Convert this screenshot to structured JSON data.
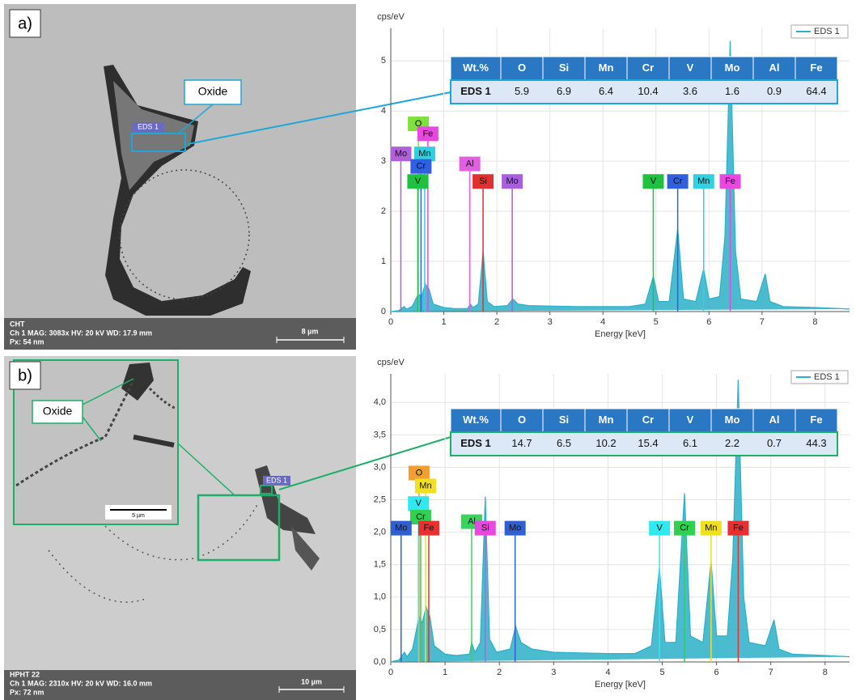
{
  "panels": [
    {
      "label": "a)",
      "image": {
        "eds_marker": "EDS 1",
        "callout": "Oxide",
        "info": {
          "line1": "CHT",
          "line2": "Ch 1  MAG: 3083x  HV: 20 kV  WD: 17.9 mm",
          "line3": "Px: 54 nm",
          "scale": "8 µm"
        }
      },
      "spectrum": {
        "type": "line",
        "y_label": "cps/eV",
        "x_label": "Energy [keV]",
        "legend": "EDS 1",
        "color": "#2bb0c8",
        "grid": true,
        "x": [
          0,
          0.15,
          0.25,
          0.3,
          0.4,
          0.45,
          0.52,
          0.58,
          0.65,
          0.72,
          0.8,
          1.0,
          1.2,
          1.45,
          1.5,
          1.55,
          1.65,
          1.74,
          1.82,
          1.95,
          2.2,
          2.3,
          2.4,
          2.6,
          3.0,
          3.5,
          4.0,
          4.5,
          4.8,
          4.95,
          5.05,
          5.25,
          5.41,
          5.52,
          5.75,
          5.9,
          6.0,
          6.2,
          6.3,
          6.4,
          6.5,
          6.6,
          6.9,
          7.06,
          7.15,
          7.4,
          8.0,
          8.65
        ],
        "values": [
          0,
          0.02,
          0.1,
          0.05,
          0.1,
          0.2,
          0.35,
          0.3,
          0.55,
          0.45,
          0.15,
          0.08,
          0.06,
          0.06,
          0.15,
          0.08,
          0.15,
          1.2,
          0.2,
          0.1,
          0.12,
          0.25,
          0.15,
          0.12,
          0.11,
          0.1,
          0.1,
          0.1,
          0.15,
          0.7,
          0.2,
          0.2,
          1.65,
          0.25,
          0.2,
          0.85,
          0.25,
          0.3,
          1.5,
          5.4,
          1.2,
          0.25,
          0.2,
          0.75,
          0.2,
          0.1,
          0.08,
          0.05
        ],
        "xlim": [
          0,
          8.65
        ],
        "ylim": [
          0,
          5.65
        ],
        "xticks": [
          0,
          1,
          2,
          3,
          4,
          5,
          6,
          7,
          8
        ],
        "yticks": [
          0,
          1,
          2,
          3,
          4,
          5
        ],
        "peaks": [
          {
            "text": "Mo",
            "energy": 0.19,
            "color": "#b060d8"
          },
          {
            "text": "O",
            "energy": 0.52,
            "color": "#80e040"
          },
          {
            "text": "Fe",
            "energy": 0.7,
            "color": "#e848e0"
          },
          {
            "text": "Mn",
            "energy": 0.64,
            "color": "#30d0e0"
          },
          {
            "text": "Cr",
            "energy": 0.57,
            "color": "#3060e0"
          },
          {
            "text": "V",
            "energy": 0.51,
            "color": "#20c040"
          },
          {
            "text": "Al",
            "energy": 1.49,
            "color": "#e060e0"
          },
          {
            "text": "Si",
            "energy": 1.74,
            "color": "#e03030"
          },
          {
            "text": "Mo",
            "energy": 2.29,
            "color": "#a860e0"
          },
          {
            "text": "V",
            "energy": 4.95,
            "color": "#20c040"
          },
          {
            "text": "Cr",
            "energy": 5.41,
            "color": "#3060e0"
          },
          {
            "text": "Mn",
            "energy": 5.9,
            "color": "#30d0e0"
          },
          {
            "text": "Fe",
            "energy": 6.4,
            "color": "#e848e0"
          }
        ]
      },
      "table": {
        "header": [
          "Wt.%",
          "O",
          "Si",
          "Mn",
          "Cr",
          "V",
          "Mo",
          "Al",
          "Fe"
        ],
        "rows": [
          [
            "EDS 1",
            5.9,
            6.9,
            6.4,
            10.4,
            3.6,
            1.6,
            0.9,
            64.4
          ]
        ]
      }
    },
    {
      "label": "b)",
      "image": {
        "eds_marker": "EDS 1",
        "callout": "Oxide",
        "inset_scale": "5 µm",
        "info": {
          "line1": "HPHT 22",
          "line2": "Ch 1  MAG: 2310x  HV: 20 kV  WD: 16.0 mm",
          "line3": "Px: 72 nm",
          "scale": "10 µm"
        }
      },
      "spectrum": {
        "type": "line",
        "y_label": "cps/eV",
        "x_label": "Energy [keV]",
        "legend": "EDS 1",
        "color": "#2bb0c8",
        "grid": true,
        "x": [
          0,
          0.15,
          0.25,
          0.3,
          0.4,
          0.45,
          0.52,
          0.58,
          0.65,
          0.72,
          0.8,
          1.0,
          1.2,
          1.45,
          1.49,
          1.55,
          1.65,
          1.74,
          1.82,
          1.95,
          2.2,
          2.3,
          2.4,
          2.6,
          3.0,
          3.5,
          4.0,
          4.5,
          4.8,
          4.95,
          5.05,
          5.25,
          5.41,
          5.52,
          5.75,
          5.9,
          6.0,
          6.2,
          6.3,
          6.4,
          6.5,
          6.6,
          6.9,
          7.06,
          7.15,
          7.4,
          8.0,
          8.45
        ],
        "values": [
          0,
          0.03,
          0.15,
          0.08,
          0.2,
          0.4,
          0.7,
          0.6,
          0.85,
          0.7,
          0.25,
          0.12,
          0.1,
          0.12,
          0.3,
          0.15,
          0.3,
          2.55,
          0.35,
          0.15,
          0.2,
          0.55,
          0.3,
          0.2,
          0.15,
          0.14,
          0.13,
          0.13,
          0.25,
          1.45,
          0.3,
          0.3,
          2.6,
          0.4,
          0.3,
          1.55,
          0.4,
          0.4,
          1.6,
          4.35,
          1.0,
          0.3,
          0.25,
          0.65,
          0.2,
          0.12,
          0.1,
          0.08
        ],
        "xlim": [
          0,
          8.45
        ],
        "ylim": [
          0,
          4.44
        ],
        "xticks": [
          0,
          1,
          2,
          3,
          4,
          5,
          6,
          7,
          8
        ],
        "yticks": [
          {
            "value": 0,
            "label": "0,0"
          },
          {
            "value": 0.5,
            "label": "0,5"
          },
          {
            "value": 1,
            "label": "1,0"
          },
          {
            "value": 1.5,
            "label": "1,5"
          },
          {
            "value": 2,
            "label": "2,0"
          },
          {
            "value": 2.5,
            "label": "2,5"
          },
          {
            "value": 3,
            "label": "3,0"
          },
          {
            "value": 3.5,
            "label": "3,5"
          },
          {
            "value": 4,
            "label": "4,0"
          }
        ],
        "peaks": [
          {
            "text": "O",
            "energy": 0.52,
            "color": "#f0a030"
          },
          {
            "text": "Mn",
            "energy": 0.64,
            "color": "#f0e020"
          },
          {
            "text": "V",
            "energy": 0.51,
            "color": "#30e8f0"
          },
          {
            "text": "Cr",
            "energy": 0.55,
            "color": "#30d050"
          },
          {
            "text": "Mo",
            "energy": 0.19,
            "color": "#3060d0"
          },
          {
            "text": "Fe",
            "energy": 0.7,
            "color": "#e83030"
          },
          {
            "text": "Al",
            "energy": 1.49,
            "color": "#40d060"
          },
          {
            "text": "Si",
            "energy": 1.74,
            "color": "#e848e0"
          },
          {
            "text": "Mo",
            "energy": 2.29,
            "color": "#3060d0"
          },
          {
            "text": "V",
            "energy": 4.95,
            "color": "#30e8f0"
          },
          {
            "text": "Cr",
            "energy": 5.41,
            "color": "#30d050"
          },
          {
            "text": "Mn",
            "energy": 5.9,
            "color": "#f0e020"
          },
          {
            "text": "Fe",
            "energy": 6.4,
            "color": "#e83030"
          }
        ]
      },
      "table": {
        "header": [
          "Wt.%",
          "O",
          "Si",
          "Mn",
          "Cr",
          "V",
          "Mo",
          "Al",
          "Fe"
        ],
        "rows": [
          [
            "EDS 1",
            14.7,
            6.5,
            10.2,
            15.4,
            6.1,
            2.2,
            0.7,
            44.3
          ]
        ]
      }
    }
  ]
}
